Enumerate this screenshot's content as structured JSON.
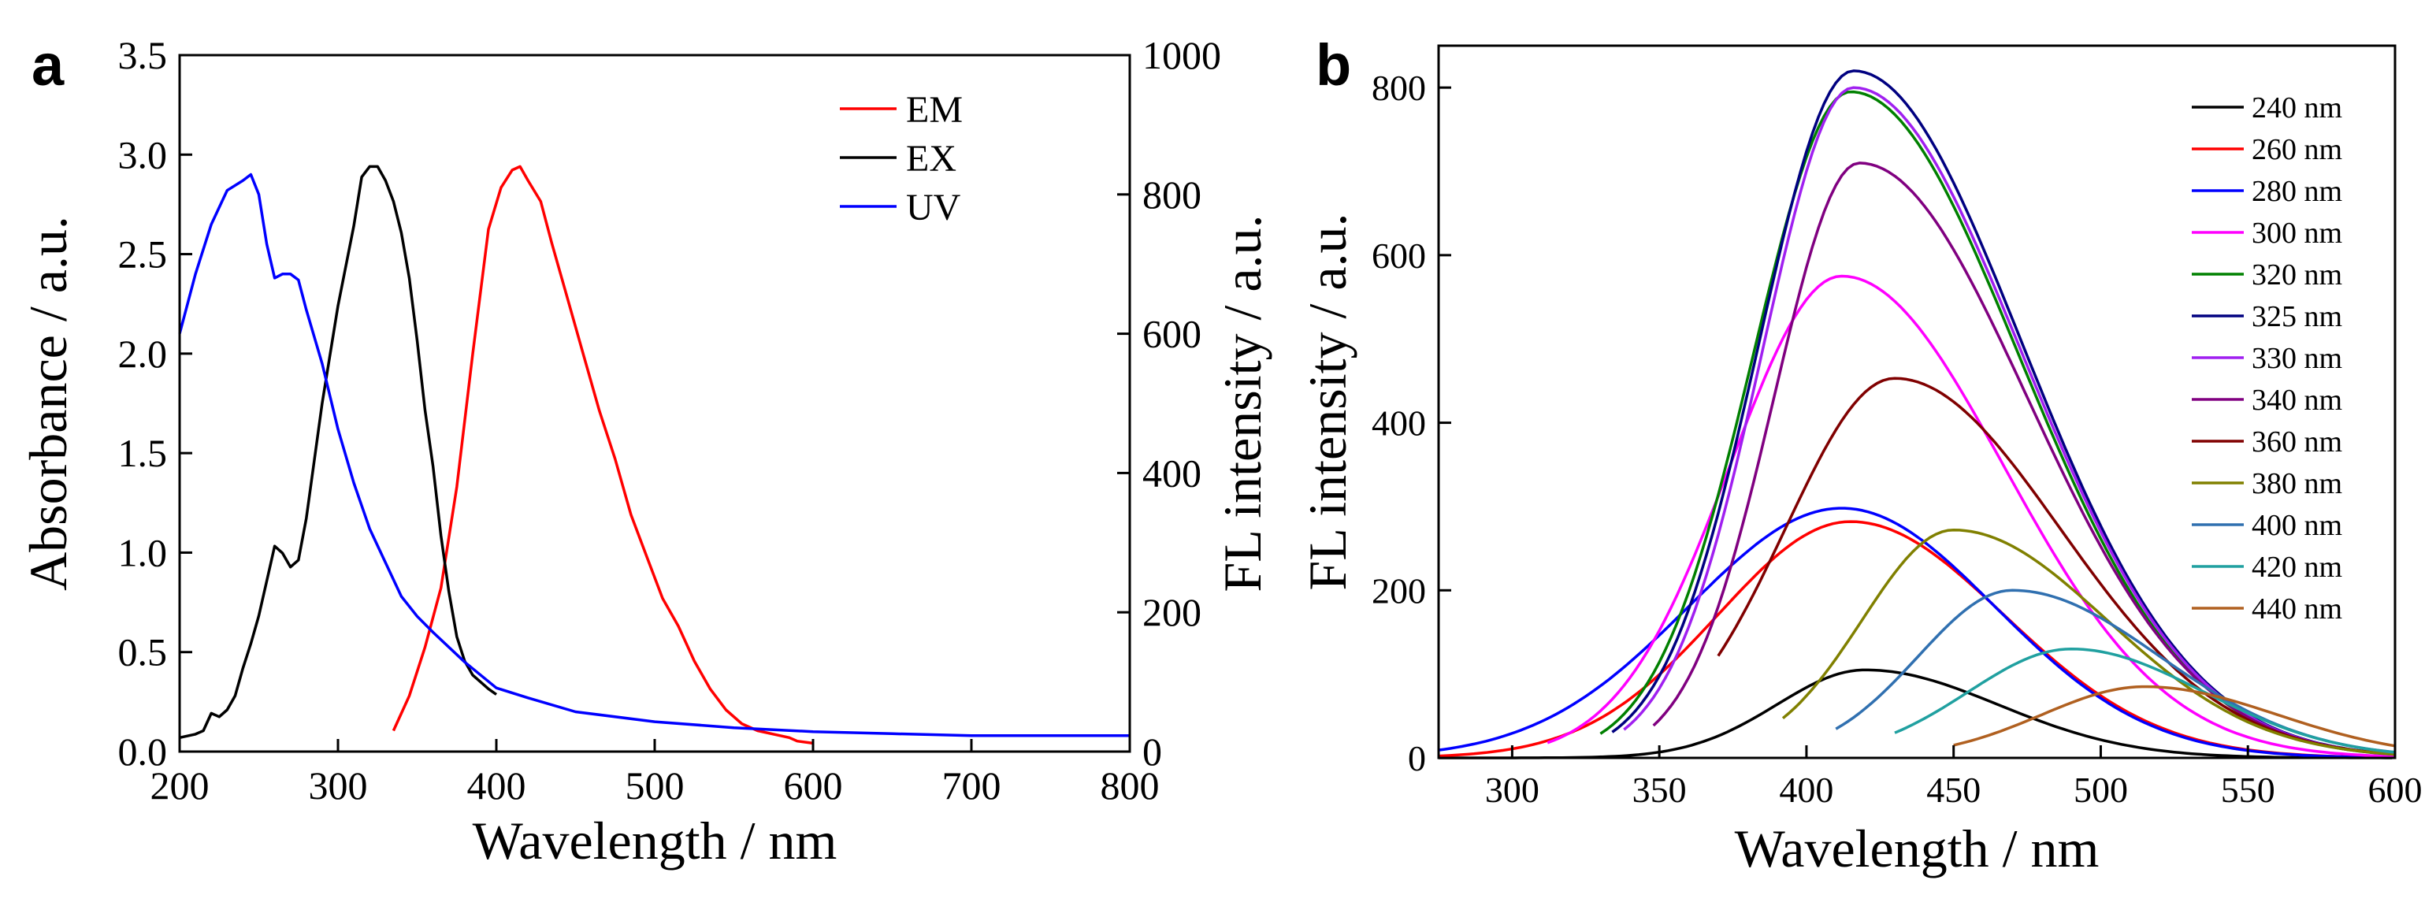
{
  "figure": {
    "panel_a_label": "a",
    "panel_b_label": "b"
  },
  "chart_data": [
    {
      "panel": "a",
      "type": "line",
      "xlabel": "Wavelength / nm",
      "ylabel": "Absorbance / a.u.",
      "y2label": "FL intensity / a.u.",
      "xlim": [
        200,
        800
      ],
      "ylim": [
        0,
        3.5
      ],
      "y2lim": [
        0,
        1000
      ],
      "xticks": [
        "200",
        "300",
        "400",
        "500",
        "600",
        "700",
        "800"
      ],
      "yticks": [
        "0.0",
        "0.5",
        "1.0",
        "1.5",
        "2.0",
        "2.5",
        "3.0",
        "3.5"
      ],
      "y2ticks": [
        "0",
        "200",
        "400",
        "600",
        "800",
        "1000"
      ],
      "legend_position": "top-right",
      "series": [
        {
          "name": "EM",
          "color": "#ff0000",
          "axis": "right",
          "x": [
            335,
            345,
            355,
            365,
            375,
            385,
            395,
            403,
            410,
            415,
            420,
            428,
            435,
            445,
            455,
            465,
            475,
            485,
            495,
            505,
            515,
            525,
            535,
            545,
            555,
            565,
            575,
            585,
            590,
            600
          ],
          "y": [
            30,
            80,
            150,
            235,
            380,
            570,
            750,
            810,
            835,
            840,
            820,
            790,
            730,
            650,
            570,
            490,
            420,
            340,
            280,
            220,
            180,
            130,
            90,
            60,
            40,
            30,
            25,
            20,
            15,
            12
          ]
        },
        {
          "name": "EX",
          "color": "#000000",
          "axis": "right",
          "x": [
            200,
            210,
            215,
            220,
            225,
            230,
            235,
            240,
            245,
            250,
            255,
            260,
            265,
            270,
            275,
            280,
            290,
            300,
            310,
            315,
            320,
            325,
            330,
            335,
            340,
            345,
            350,
            355,
            360,
            365,
            370,
            375,
            380,
            385,
            390,
            395,
            400
          ],
          "y": [
            20,
            25,
            30,
            55,
            50,
            60,
            80,
            120,
            155,
            195,
            245,
            295,
            285,
            265,
            275,
            335,
            500,
            640,
            755,
            825,
            840,
            840,
            820,
            790,
            745,
            680,
            590,
            490,
            410,
            310,
            230,
            165,
            130,
            110,
            100,
            90,
            82
          ]
        },
        {
          "name": "UV",
          "color": "#0000ff",
          "axis": "left",
          "x": [
            200,
            210,
            220,
            230,
            240,
            245,
            250,
            255,
            260,
            265,
            270,
            275,
            280,
            290,
            300,
            310,
            320,
            330,
            340,
            350,
            360,
            380,
            400,
            420,
            450,
            500,
            550,
            600,
            650,
            700,
            750,
            800
          ],
          "y": [
            2.1,
            2.4,
            2.65,
            2.82,
            2.87,
            2.9,
            2.8,
            2.55,
            2.38,
            2.4,
            2.4,
            2.37,
            2.22,
            1.95,
            1.62,
            1.35,
            1.12,
            0.95,
            0.78,
            0.68,
            0.6,
            0.45,
            0.32,
            0.27,
            0.2,
            0.15,
            0.12,
            0.1,
            0.09,
            0.08,
            0.08,
            0.08
          ]
        }
      ]
    },
    {
      "panel": "b",
      "type": "line",
      "xlabel": "Wavelength / nm",
      "ylabel": "FL intensity / a.u.",
      "xlim": [
        275,
        600
      ],
      "ylim": [
        0,
        850
      ],
      "xticks": [
        "300",
        "350",
        "400",
        "450",
        "500",
        "550",
        "600"
      ],
      "yticks": [
        "0",
        "200",
        "400",
        "600",
        "800"
      ],
      "legend_position": "top-right",
      "series": [
        {
          "name": "240 nm",
          "color": "#000000",
          "start": 275,
          "peak": 420,
          "amp": 105,
          "sl": 30,
          "sr": 45
        },
        {
          "name": "260 nm",
          "color": "#ff0000",
          "start": 275,
          "peak": 415,
          "amp": 282,
          "sl": 45,
          "sr": 52
        },
        {
          "name": "280 nm",
          "color": "#0000ff",
          "start": 275,
          "peak": 412,
          "amp": 298,
          "sl": 52,
          "sr": 52
        },
        {
          "name": "300 nm",
          "color": "#ff00ff",
          "start": 312,
          "peak": 412,
          "amp": 575,
          "sl": 38,
          "sr": 55
        },
        {
          "name": "320 nm",
          "color": "#008000",
          "start": 330,
          "peak": 415,
          "amp": 795,
          "sl": 33,
          "sr": 57
        },
        {
          "name": "325 nm",
          "color": "#000080",
          "start": 334,
          "peak": 416,
          "amp": 820,
          "sl": 32,
          "sr": 57
        },
        {
          "name": "330 nm",
          "color": "#a020f0",
          "start": 338,
          "peak": 416,
          "amp": 800,
          "sl": 31,
          "sr": 57
        },
        {
          "name": "340 nm",
          "color": "#800080",
          "start": 348,
          "peak": 418,
          "amp": 710,
          "sl": 29,
          "sr": 57
        },
        {
          "name": "360 nm",
          "color": "#800000",
          "start": 370,
          "peak": 430,
          "amp": 453,
          "sl": 37,
          "sr": 56
        },
        {
          "name": "380 nm",
          "color": "#808000",
          "start": 392,
          "peak": 450,
          "amp": 272,
          "sl": 31,
          "sr": 52
        },
        {
          "name": "400 nm",
          "color": "#3070b0",
          "start": 410,
          "peak": 470,
          "amp": 200,
          "sl": 32,
          "sr": 50
        },
        {
          "name": "420 nm",
          "color": "#20a0a0",
          "start": 430,
          "peak": 490,
          "amp": 130,
          "sl": 35,
          "sr": 45
        },
        {
          "name": "440 nm",
          "color": "#b06020",
          "start": 450,
          "peak": 515,
          "amp": 85,
          "sl": 35,
          "sr": 45
        }
      ]
    }
  ]
}
